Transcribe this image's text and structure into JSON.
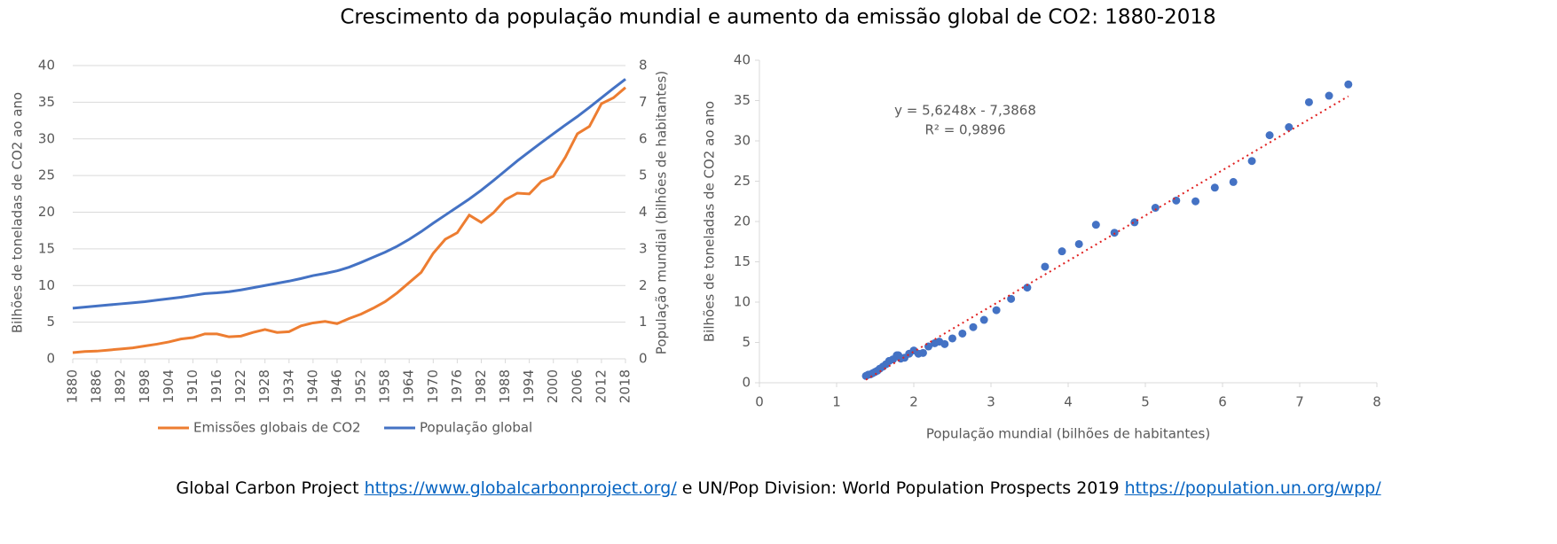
{
  "title": "Crescimento da população mundial e aumento da emissão global de CO2: 1880-2018",
  "footer": {
    "text1": "Global Carbon Project",
    "link1": "https://www.globalcarbonproject.org/",
    "text2": "e UN/Pop Division: World Population Prospects 2019",
    "link2": "https://population.un.org/wpp/"
  },
  "chart_data": [
    {
      "type": "line",
      "y_label": "Bilhões de toneladas de CO2 ao ano",
      "y2_label": "População mundial (bilhões de habitantes)",
      "x": [
        1880,
        1883,
        1886,
        1889,
        1892,
        1895,
        1898,
        1901,
        1904,
        1907,
        1910,
        1913,
        1916,
        1919,
        1922,
        1925,
        1928,
        1931,
        1934,
        1937,
        1940,
        1943,
        1946,
        1949,
        1952,
        1955,
        1958,
        1961,
        1964,
        1967,
        1970,
        1973,
        1976,
        1979,
        1982,
        1985,
        1988,
        1991,
        1994,
        1997,
        2000,
        2003,
        2006,
        2009,
        2012,
        2015,
        2018
      ],
      "xlim": [
        1880,
        2018
      ],
      "xticks": [
        1880,
        1886,
        1892,
        1898,
        1904,
        1910,
        1916,
        1922,
        1928,
        1934,
        1940,
        1946,
        1952,
        1958,
        1964,
        1970,
        1976,
        1982,
        1988,
        1994,
        2000,
        2006,
        2012,
        2018
      ],
      "ylim": [
        0,
        40
      ],
      "yticks": [
        0,
        5,
        10,
        15,
        20,
        25,
        30,
        35,
        40
      ],
      "y2lim": [
        0,
        8
      ],
      "y2ticks": [
        0,
        1,
        2,
        3,
        4,
        5,
        6,
        7,
        8
      ],
      "grid": true,
      "legend": "bottom",
      "series": [
        {
          "name": "Emissões globais de CO2",
          "color": "#ed7d31",
          "values": [
            0.85,
            1.0,
            1.05,
            1.2,
            1.35,
            1.5,
            1.75,
            2.0,
            2.3,
            2.7,
            2.9,
            3.4,
            3.4,
            3.0,
            3.1,
            3.6,
            4.0,
            3.6,
            3.7,
            4.5,
            4.9,
            5.1,
            4.8,
            5.5,
            6.1,
            6.9,
            7.8,
            9.0,
            10.4,
            11.8,
            14.4,
            16.3,
            17.2,
            19.6,
            18.6,
            19.9,
            21.7,
            22.6,
            22.5,
            24.2,
            24.9,
            27.5,
            30.7,
            31.7,
            34.8,
            35.6,
            37.0
          ]
        },
        {
          "name": "População global",
          "color": "#4472c4",
          "axis": "y2",
          "values": [
            1.38,
            1.41,
            1.44,
            1.47,
            1.5,
            1.53,
            1.56,
            1.6,
            1.64,
            1.68,
            1.73,
            1.78,
            1.8,
            1.83,
            1.88,
            1.94,
            2.0,
            2.06,
            2.12,
            2.19,
            2.27,
            2.33,
            2.4,
            2.5,
            2.63,
            2.77,
            2.91,
            3.07,
            3.26,
            3.47,
            3.7,
            3.92,
            4.14,
            4.36,
            4.6,
            4.86,
            5.13,
            5.4,
            5.65,
            5.9,
            6.14,
            6.38,
            6.61,
            6.86,
            7.12,
            7.38,
            7.63
          ]
        }
      ]
    },
    {
      "type": "scatter",
      "x_label": "População mundial (bilhões de habitantes)",
      "y_label": "Bilhões de toneladas de CO2 ao ano",
      "xlim": [
        0,
        8
      ],
      "xticks": [
        0,
        1,
        2,
        3,
        4,
        5,
        6,
        7,
        8
      ],
      "ylim": [
        0,
        40
      ],
      "yticks": [
        0,
        5,
        10,
        15,
        20,
        25,
        30,
        35,
        40
      ],
      "grid": false,
      "color": "#4472c4",
      "x": [
        1.38,
        1.41,
        1.44,
        1.47,
        1.5,
        1.53,
        1.56,
        1.6,
        1.64,
        1.68,
        1.73,
        1.78,
        1.8,
        1.83,
        1.88,
        1.94,
        2.0,
        2.06,
        2.12,
        2.19,
        2.27,
        2.33,
        2.4,
        2.5,
        2.63,
        2.77,
        2.91,
        3.07,
        3.26,
        3.47,
        3.7,
        3.92,
        4.14,
        4.36,
        4.6,
        4.86,
        5.13,
        5.4,
        5.65,
        5.9,
        6.14,
        6.38,
        6.61,
        6.86,
        7.12,
        7.38,
        7.63
      ],
      "values": [
        0.85,
        1.0,
        1.05,
        1.2,
        1.35,
        1.5,
        1.75,
        2.0,
        2.3,
        2.7,
        2.9,
        3.4,
        3.4,
        3.0,
        3.1,
        3.6,
        4.0,
        3.6,
        3.7,
        4.5,
        4.9,
        5.1,
        4.8,
        5.5,
        6.1,
        6.9,
        7.8,
        9.0,
        10.4,
        11.8,
        14.4,
        16.3,
        17.2,
        19.6,
        18.6,
        19.9,
        21.7,
        22.6,
        22.5,
        24.2,
        24.9,
        27.5,
        30.7,
        31.7,
        34.8,
        35.6,
        37.0
      ],
      "trendline": {
        "slope": 5.6248,
        "intercept": -7.3868,
        "color": "#e02020",
        "equation": "y = 5,6248x - 7,3868",
        "r2": "R² = 0,9896"
      }
    }
  ]
}
